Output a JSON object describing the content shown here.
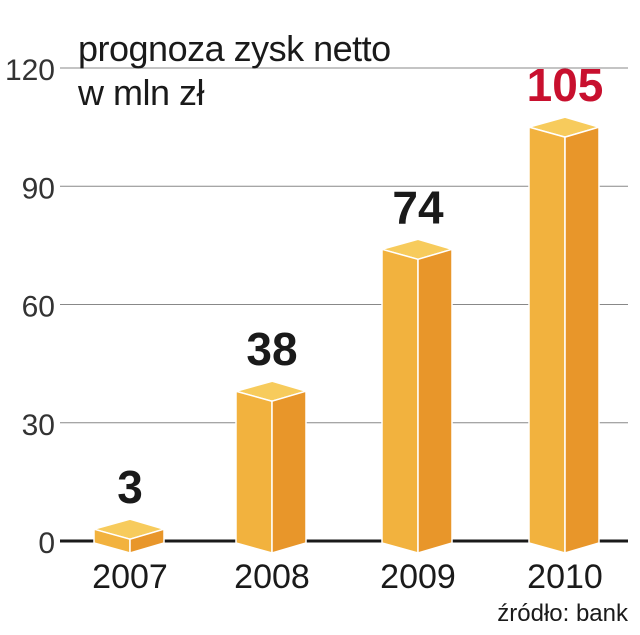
{
  "chart_data": {
    "type": "bar",
    "title": "prognoza zysk netto",
    "subtitle": "w mln zł",
    "categories": [
      "2007",
      "2008",
      "2009",
      "2010"
    ],
    "values": [
      3,
      38,
      74,
      105
    ],
    "value_labels": [
      "3",
      "38",
      "74",
      "105"
    ],
    "y_ticks": [
      "0",
      "30",
      "60",
      "90",
      "120"
    ],
    "ylim": [
      0,
      120
    ],
    "grid": true,
    "highlight_index": 3
  },
  "source": "źródło: bank",
  "colors": {
    "bar_front": "#F2B23E",
    "bar_side": "#E8962A",
    "bar_top": "#F7CB5C",
    "highlight_label": "#C8102E",
    "label": "#1a1a1a",
    "grid": "#888888"
  }
}
